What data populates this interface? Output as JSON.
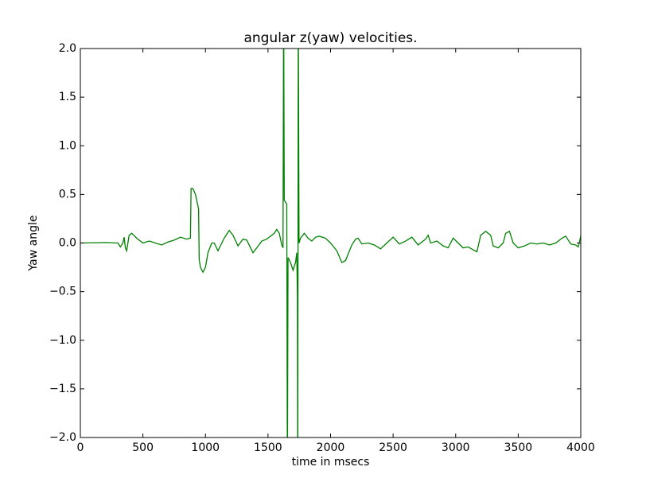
{
  "chart_data": {
    "type": "line",
    "title": "angular z(yaw) velocities.",
    "x_label": "time in msecs",
    "y_label": "Yaw angle",
    "xlim": [
      0,
      4000
    ],
    "xticks": [
      0,
      500,
      1000,
      1500,
      2000,
      2500,
      3000,
      3500,
      4000
    ],
    "ylim": [
      -2,
      2
    ],
    "yticks": [
      {
        "value": -2,
        "label": "−2.0"
      },
      {
        "value": -1.5,
        "label": "−1.5"
      },
      {
        "value": -1,
        "label": "−1.0"
      },
      {
        "value": -0.5,
        "label": "−0.5"
      },
      {
        "value": 0,
        "label": "0.0"
      },
      0.5,
      {
        "value": 1,
        "label": "1.0"
      },
      1.5,
      {
        "value": 2,
        "label": "2.0"
      }
    ],
    "x": [
      0,
      200,
      300,
      320,
      340,
      350,
      360,
      370,
      390,
      410,
      450,
      500,
      550,
      600,
      650,
      700,
      750,
      800,
      850,
      880,
      885,
      900,
      920,
      945,
      950,
      960,
      980,
      1000,
      1020,
      1050,
      1070,
      1100,
      1150,
      1190,
      1220,
      1260,
      1300,
      1330,
      1380,
      1410,
      1450,
      1490,
      1550,
      1570,
      1590,
      1610,
      1620,
      1625,
      1630,
      1650,
      1655,
      1660,
      1680,
      1700,
      1720,
      1730,
      1735,
      1738,
      1742,
      1748,
      1760,
      1790,
      1820,
      1850,
      1880,
      1910,
      1960,
      2000,
      2050,
      2090,
      2120,
      2170,
      2200,
      2220,
      2250,
      2300,
      2350,
      2400,
      2450,
      2500,
      2550,
      2600,
      2650,
      2700,
      2760,
      2780,
      2800,
      2850,
      2900,
      2940,
      2980,
      3020,
      3060,
      3100,
      3140,
      3170,
      3200,
      3240,
      3280,
      3300,
      3340,
      3380,
      3400,
      3430,
      3460,
      3500,
      3550,
      3600,
      3650,
      3700,
      3750,
      3800,
      3850,
      3880,
      3920,
      3960,
      3980,
      4000
    ],
    "series": [
      {
        "color": "#008000",
        "values": [
          0,
          0.005,
          0,
          -0.04,
          0,
          0.06,
          -0.05,
          -0.08,
          0.08,
          0.1,
          0.05,
          0,
          0.02,
          0,
          -0.02,
          0.01,
          0.03,
          0.06,
          0.04,
          0.05,
          0.56,
          0.56,
          0.5,
          0.35,
          -0.17,
          -0.25,
          -0.3,
          -0.25,
          -0.1,
          0,
          0,
          -0.08,
          0.05,
          0.13,
          0.08,
          -0.03,
          0.04,
          0.03,
          -0.1,
          -0.05,
          0.02,
          0.04,
          0.1,
          0.14,
          0.1,
          -0.02,
          -0.05,
          2.5,
          0.44,
          0.4,
          -2.5,
          -0.15,
          -0.2,
          -0.28,
          -0.2,
          -0.1,
          -0.55,
          -2.5,
          2.5,
          0,
          0.05,
          0.1,
          0.05,
          0.02,
          0.06,
          0.07,
          0.05,
          0,
          -0.08,
          -0.2,
          -0.18,
          -0.02,
          0.04,
          0.05,
          -0.01,
          0,
          -0.02,
          -0.06,
          0,
          0.06,
          -0.01,
          0.02,
          0.06,
          -0.02,
          0.04,
          0.08,
          0,
          0.02,
          -0.03,
          -0.05,
          0.05,
          0,
          -0.05,
          -0.04,
          -0.07,
          -0.09,
          0.08,
          0.12,
          0.08,
          -0.03,
          -0.05,
          0,
          0.1,
          0.12,
          0,
          -0.05,
          -0.03,
          0,
          -0.01,
          0,
          -0.02,
          0,
          0.05,
          0.07,
          -0.01,
          -0.02,
          -0.04,
          0.07
        ]
      }
    ]
  }
}
